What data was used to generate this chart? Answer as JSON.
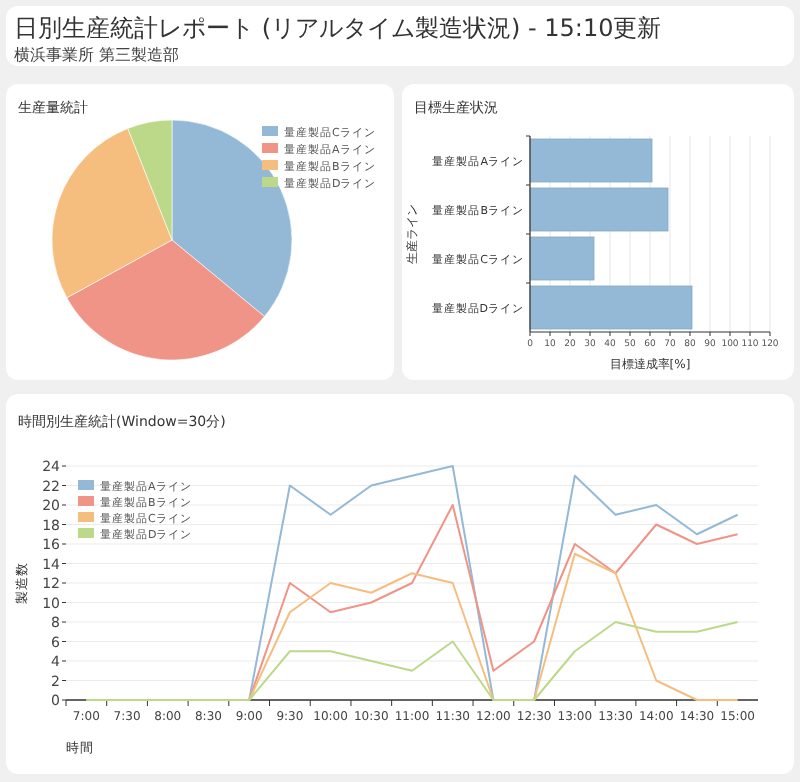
{
  "chart_data": [
    {
      "type": "other",
      "title": "日別生産統計レポート (リアルタイム製造状況) - 15:10更新",
      "subtitle": "横浜事業所 第三製造部"
    },
    {
      "type": "pie",
      "title": "生産量統計",
      "categories": [
        "量産製品Cライン",
        "量産製品Aライン",
        "量産製品Bライン",
        "量産製品Dライン"
      ],
      "values": [
        36,
        31,
        27,
        6
      ],
      "colors": [
        "#94b9d6",
        "#ef9486",
        "#f5be7e",
        "#bcd98a"
      ],
      "legend": "top right"
    },
    {
      "type": "bar",
      "title": "目標生産状況",
      "orientation": "horizontal",
      "categories": [
        "量産製品Aライン",
        "量産製品Bライン",
        "量産製品Cライン",
        "量産製品Dライン"
      ],
      "values": [
        61,
        69,
        32,
        81
      ],
      "color": "#94b9d6",
      "xlim": [
        0,
        120
      ],
      "xticks": [
        0,
        10,
        20,
        30,
        40,
        50,
        60,
        70,
        80,
        90,
        100,
        110,
        120
      ],
      "xlabel": "目標達成率[%]",
      "ylabel": "生産ライン",
      "grid": "x"
    },
    {
      "type": "line",
      "title": "時間別生産統計(Window=30分)",
      "categories": [
        "7:00",
        "7:30",
        "8:00",
        "8:30",
        "9:00",
        "9:30",
        "10:00",
        "10:30",
        "11:00",
        "11:30",
        "12:00",
        "12:30",
        "13:00",
        "13:30",
        "14:00",
        "14:30",
        "15:00"
      ],
      "ylim": [
        0,
        24
      ],
      "yticks": [
        0,
        2,
        4,
        6,
        8,
        10,
        12,
        14,
        16,
        18,
        20,
        22,
        24
      ],
      "xlabel": "時間",
      "ylabel": "製造数",
      "grid": "y",
      "legend": "top left",
      "marker": "none",
      "line_style": "solid",
      "series": [
        {
          "name": "量産製品Aライン",
          "color": "#94b9d6",
          "values": [
            0,
            0,
            0,
            0,
            0,
            22,
            19,
            22,
            23,
            24,
            0,
            0,
            23,
            19,
            20,
            17,
            19
          ]
        },
        {
          "name": "量産製品Bライン",
          "color": "#ef9486",
          "values": [
            null,
            null,
            null,
            0,
            0,
            12,
            9,
            10,
            12,
            20,
            3,
            6,
            16,
            13,
            18,
            16,
            17
          ]
        },
        {
          "name": "量産製品Cライン",
          "color": "#f5be7e",
          "values": [
            null,
            null,
            null,
            0,
            0,
            9,
            12,
            11,
            13,
            12,
            0,
            0,
            15,
            13,
            2,
            0,
            0
          ]
        },
        {
          "name": "量産製品Dライン",
          "color": "#bcd98a",
          "values": [
            0,
            0,
            0,
            0,
            0,
            5,
            5,
            4,
            3,
            6,
            0,
            0,
            5,
            8,
            7,
            7,
            8
          ]
        }
      ]
    }
  ]
}
